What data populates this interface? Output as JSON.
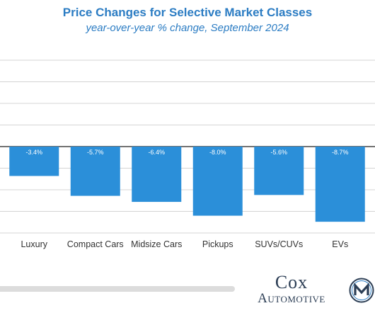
{
  "header": {
    "title": "Price Changes for Selective Market Classes",
    "subtitle": "year-over-year % change, September 2024"
  },
  "chart_data": {
    "type": "bar",
    "title": "Price Changes for Selective Market Classes",
    "subtitle": "year-over-year % change, September 2024",
    "categories": [
      "Luxury",
      "Compact Cars",
      "Midsize Cars",
      "Pickups",
      "SUVs/CUVs",
      "EVs"
    ],
    "values": [
      -3.4,
      -5.7,
      -6.4,
      -8.0,
      -5.6,
      -8.7
    ],
    "data_labels": [
      "-3.4%",
      "-5.7%",
      "-6.4%",
      "-8.0%",
      "-5.6%",
      "-8.7%"
    ],
    "ylim": [
      -10,
      10
    ],
    "grid": true,
    "bar_color": "#2b8fd9",
    "xlabel": "",
    "ylabel": ""
  },
  "branding": {
    "logo_line1": "Cox",
    "logo_line2": "Automotive"
  }
}
